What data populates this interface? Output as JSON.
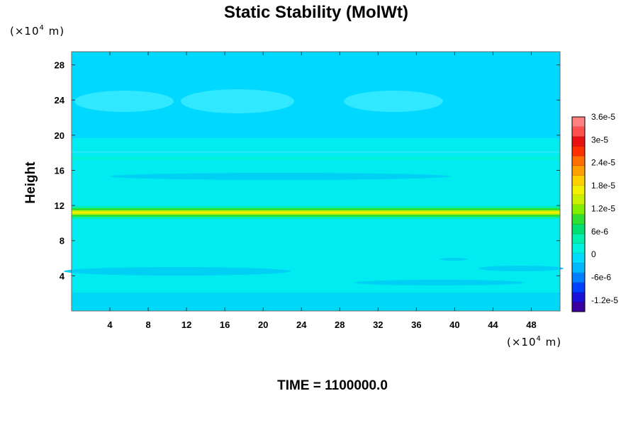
{
  "chart_data": {
    "type": "heatmap",
    "title": "Static Stability (MolWt)",
    "ylabel": "Height",
    "x_unit_prefix": "(×10",
    "x_unit_exp": "4",
    "x_unit_suffix": " m)",
    "y_unit_prefix": "(×10",
    "y_unit_exp": "4",
    "y_unit_suffix": " m)",
    "xlim": [
      0,
      51
    ],
    "ylim": [
      0,
      29.5
    ],
    "x_ticks": [
      4,
      8,
      12,
      16,
      20,
      24,
      28,
      32,
      36,
      40,
      44,
      48
    ],
    "y_ticks": [
      4,
      8,
      12,
      16,
      20,
      24,
      28
    ],
    "colorbar": {
      "range": [
        -1.5e-05,
        3.6e-05
      ],
      "tick_values": [
        3.6e-05,
        3e-05,
        2.4e-05,
        1.8e-05,
        1.2e-05,
        6e-06,
        0,
        -6e-06,
        -1.2e-05
      ],
      "tick_labels": [
        "3.6e-5",
        "3e-5",
        "2.4e-5",
        "1.8e-5",
        "1.2e-5",
        "6e-6",
        "0",
        "-6e-6",
        "-1.2e-5"
      ],
      "colors": [
        "#3a00a0",
        "#1a12d8",
        "#0040ff",
        "#0080ff",
        "#00b8ff",
        "#00dcff",
        "#00f0e0",
        "#00f0b0",
        "#00e070",
        "#30e030",
        "#80f000",
        "#c8f000",
        "#f0f000",
        "#ffd000",
        "#ffa000",
        "#ff7000",
        "#ff3000",
        "#e81010",
        "#ff5050",
        "#ff8080"
      ]
    },
    "field_description_regions": {
      "background_value": 0,
      "upper_layer_value": -1.5e-06,
      "upper_lobes_value": 1.5e-06,
      "peak_band_center_y": 11.4,
      "peak_value": 2e-05
    },
    "time_label": "TIME = 1100000.0"
  }
}
